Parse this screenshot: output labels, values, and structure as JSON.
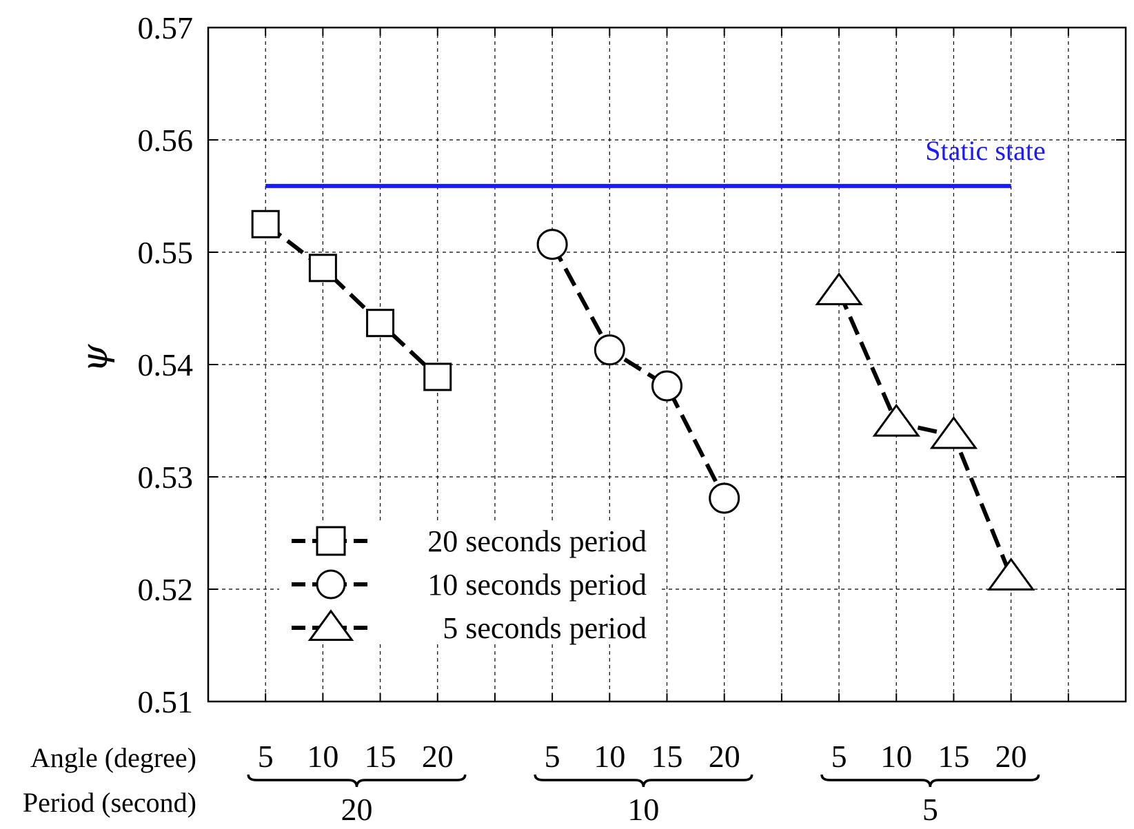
{
  "chart_data": {
    "type": "line",
    "title": "",
    "xlabel": "",
    "ylabel": "ψ",
    "ylim": [
      0.51,
      0.57
    ],
    "yticks": [
      0.51,
      0.52,
      0.53,
      0.54,
      0.55,
      0.56,
      0.57
    ],
    "ytick_labels": [
      "0.51",
      "0.52",
      "0.53",
      "0.54",
      "0.55",
      "0.56",
      "0.57"
    ],
    "grid": true,
    "x_rows": {
      "angle_label": "Angle (degree)",
      "period_label": "Period (second)"
    },
    "groups": [
      {
        "period": "20",
        "angles": [
          "5",
          "10",
          "15",
          "20"
        ]
      },
      {
        "period": "10",
        "angles": [
          "5",
          "10",
          "15",
          "20"
        ]
      },
      {
        "period": "5",
        "angles": [
          "5",
          "10",
          "15",
          "20"
        ]
      }
    ],
    "series": [
      {
        "name": "20 seconds period",
        "marker": "square",
        "group": 0,
        "values": [
          0.5525,
          0.5486,
          0.5437,
          0.5389
        ]
      },
      {
        "name": "10 seconds period",
        "marker": "circle",
        "group": 1,
        "values": [
          0.5507,
          0.5413,
          0.5381,
          0.5281
        ]
      },
      {
        "name": "5 seconds period",
        "marker": "triangle",
        "group": 2,
        "values": [
          0.5465,
          0.5348,
          0.5337,
          0.5211
        ]
      }
    ],
    "reference_line": {
      "label": "Static state",
      "value": 0.5559,
      "color": "#1a1aff"
    },
    "legend": {
      "position": "lower-left"
    }
  }
}
